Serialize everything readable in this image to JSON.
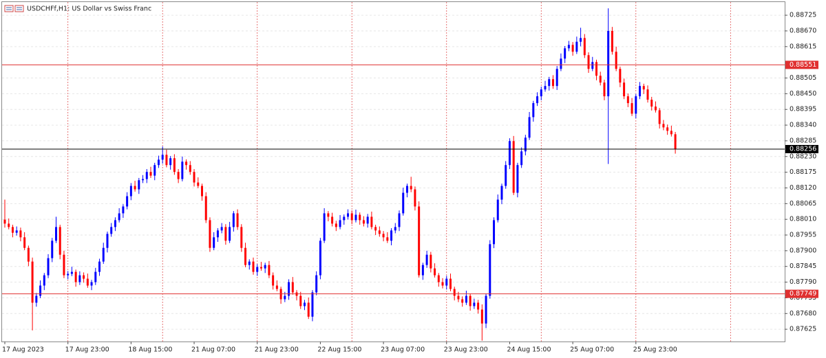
{
  "chart_data": {
    "type": "candlestick",
    "title": "USDCHFf,H1:  US Dollar vs Swiss Franc",
    "up_color": "#0000ff",
    "down_color": "#ff0000",
    "grid": true,
    "ylim": [
      0.87582,
      0.88771
    ],
    "yticks": [
      0.88725,
      {
        "value": 0.8867,
        "label": "0.88670"
      },
      0.88615,
      0.88505,
      {
        "value": 0.8845,
        "label": "0.88450"
      },
      0.88395,
      {
        "value": 0.8834,
        "label": "0.88340"
      },
      0.88285,
      {
        "value": 0.8823,
        "label": "0.88230"
      },
      0.88175,
      {
        "value": 0.8812,
        "label": "0.88120"
      },
      0.88065,
      {
        "value": 0.8801,
        "label": "0.88010"
      },
      0.87955,
      {
        "value": 0.879,
        "label": "0.87900"
      },
      0.87845,
      {
        "value": 0.8779,
        "label": "0.87790"
      },
      0.87735,
      {
        "value": 0.8768,
        "label": "0.87680"
      },
      0.87625
    ],
    "levels": [
      {
        "value": 0.88551,
        "color": "#e03030"
      },
      {
        "value": 0.88256,
        "color": "#000000"
      },
      {
        "value": 0.87749,
        "color": "#e03030"
      }
    ],
    "categories": [
      "17 Aug 2023",
      null,
      null,
      null,
      null,
      null,
      null,
      null,
      null,
      null,
      null,
      null,
      null,
      null,
      null,
      null,
      "17 Aug 23:00",
      null,
      null,
      null,
      null,
      null,
      null,
      null,
      null,
      null,
      null,
      null,
      null,
      null,
      null,
      null,
      "18 Aug 15:00",
      null,
      null,
      null,
      null,
      null,
      null,
      null,
      null,
      null,
      null,
      null,
      null,
      null,
      null,
      null,
      "21 Aug 07:00",
      null,
      null,
      null,
      null,
      null,
      null,
      null,
      null,
      null,
      null,
      null,
      null,
      null,
      null,
      null,
      "21 Aug 23:00",
      null,
      null,
      null,
      null,
      null,
      null,
      null,
      null,
      null,
      null,
      null,
      null,
      null,
      null,
      null,
      "22 Aug 15:00",
      null,
      null,
      null,
      null,
      null,
      null,
      null,
      null,
      null,
      null,
      null,
      null,
      null,
      null,
      null,
      "23 Aug 07:00",
      null,
      null,
      null,
      null,
      null,
      null,
      null,
      null,
      null,
      null,
      null,
      null,
      null,
      null,
      null,
      "23 Aug 23:00",
      null,
      null,
      null,
      null,
      null,
      null,
      null,
      null,
      null,
      null,
      null,
      null,
      null,
      null,
      null,
      "24 Aug 15:00",
      null,
      null,
      null,
      null,
      null,
      null,
      null,
      null,
      null,
      null,
      null,
      null,
      null,
      null,
      null,
      "25 Aug 07:00",
      null,
      null,
      null,
      null,
      null,
      null,
      null,
      null,
      null,
      null,
      null,
      null,
      null,
      null,
      null,
      "25 Aug 23:00",
      null,
      null,
      null,
      null,
      null,
      null,
      null,
      null,
      null,
      null
    ],
    "open": [
      0.88009,
      0.87995,
      0.87983,
      0.87963,
      0.87971,
      0.87947,
      0.8791,
      0.87862,
      0.87718,
      0.87742,
      0.87778,
      0.87814,
      0.87874,
      0.87935,
      0.87983,
      0.87886,
      0.87814,
      0.87819,
      0.87826,
      0.8779,
      0.87814,
      0.87802,
      0.87778,
      0.8779,
      0.87826,
      0.87862,
      0.8791,
      0.87959,
      0.87983,
      0.88007,
      0.88031,
      0.88055,
      0.88091,
      0.88127,
      0.88115,
      0.88147,
      0.88151,
      0.88176,
      0.88163,
      0.882,
      0.88219,
      0.88236,
      0.882,
      0.88224,
      0.88176,
      0.88151,
      0.88212,
      0.882,
      0.88176,
      0.88139,
      0.88127,
      0.88091,
      0.88007,
      0.8791,
      0.87947,
      0.87971,
      0.87983,
      0.87935,
      0.87983,
      0.88031,
      0.87983,
      0.8791,
      0.8785,
      0.87862,
      0.87826,
      0.87843,
      0.87838,
      0.8785,
      0.87814,
      0.87778,
      0.87766,
      0.8773,
      0.87742,
      0.8779,
      0.87754,
      0.87742,
      0.87706,
      0.87718,
      0.87669,
      0.87754,
      0.87814,
      0.87935,
      0.88031,
      0.88019,
      0.87995,
      0.87983,
      0.88007,
      0.88019,
      0.88031,
      0.88007,
      0.88026,
      0.88007,
      0.87995,
      0.88019,
      0.87983,
      0.87971,
      0.87959,
      0.87947,
      0.87935,
      0.87971,
      0.87983,
      0.88031,
      0.88103,
      0.88127,
      0.88115,
      0.88055,
      0.87814,
      0.8785,
      0.87886,
      0.87838,
      0.87814,
      0.8779,
      0.87778,
      0.87802,
      0.87766,
      0.87742,
      0.8773,
      0.87718,
      0.87742,
      0.87706,
      0.87718,
      0.87694,
      0.87645,
      0.87742,
      0.87923,
      0.88007,
      0.88079,
      0.88127,
      0.882,
      0.88284,
      0.88103,
      0.882,
      0.88248,
      0.88296,
      0.88368,
      0.88417,
      0.88441,
      0.88465,
      0.88477,
      0.88501,
      0.88477,
      0.88537,
      0.88573,
      0.88609,
      0.88621,
      0.88597,
      0.88632,
      0.88645,
      0.88585,
      0.88537,
      0.88561,
      0.88513,
      0.88489,
      0.88441,
      0.8867,
      0.88597,
      0.88537,
      0.88489,
      0.88441,
      0.88417,
      0.8838,
      0.88441,
      0.88477,
      0.88465,
      0.88429,
      0.88405,
      0.88392,
      0.88344,
      0.88332,
      0.8832,
      0.88308
    ],
    "high": [
      0.88079,
      0.88013,
      0.87991,
      0.87985,
      0.87981,
      0.87965,
      0.87918,
      0.87876,
      0.87752,
      0.87796,
      0.87822,
      0.87888,
      0.87945,
      0.88019,
      0.87991,
      0.879,
      0.87829,
      0.87844,
      0.87834,
      0.87828,
      0.87824,
      0.8782,
      0.87798,
      0.8784,
      0.87872,
      0.87928,
      0.87967,
      0.87997,
      0.88017,
      0.88049,
      0.88063,
      0.88105,
      0.88137,
      0.88145,
      0.88155,
      0.88165,
      0.88186,
      0.88194,
      0.88208,
      0.88233,
      0.88265,
      0.88254,
      0.88232,
      0.88238,
      0.88186,
      0.8823,
      0.8822,
      0.88214,
      0.88186,
      0.88157,
      0.88135,
      0.88105,
      0.88017,
      0.87965,
      0.87979,
      0.87997,
      0.87993,
      0.88001,
      0.88039,
      0.88045,
      0.87993,
      0.87928,
      0.8787,
      0.87876,
      0.87853,
      0.87861,
      0.87858,
      0.87864,
      0.87824,
      0.87796,
      0.87774,
      0.87756,
      0.878,
      0.87808,
      0.87762,
      0.87756,
      0.87728,
      0.87736,
      0.87762,
      0.87828,
      0.87945,
      0.88049,
      0.88039,
      0.88033,
      0.88005,
      0.88025,
      0.88027,
      0.88045,
      0.88041,
      0.88044,
      0.88034,
      0.88021,
      0.88029,
      0.88037,
      0.87991,
      0.87985,
      0.87969,
      0.87965,
      0.87979,
      0.87997,
      0.88041,
      0.88121,
      0.88135,
      0.88159,
      0.88125,
      0.88073,
      0.87858,
      0.879,
      0.87896,
      0.87856,
      0.87822,
      0.87804,
      0.87812,
      0.8782,
      0.87774,
      0.87756,
      0.8774,
      0.8776,
      0.8775,
      0.87732,
      0.87728,
      0.87712,
      0.8775,
      0.87937,
      0.88017,
      0.88097,
      0.88135,
      0.88214,
      0.88294,
      0.88302,
      0.88208,
      0.88262,
      0.88306,
      0.88386,
      0.88425,
      0.88455,
      0.88475,
      0.88495,
      0.88509,
      0.88515,
      0.88547,
      0.88591,
      0.88617,
      0.88635,
      0.88631,
      0.8865,
      0.88681,
      0.88659,
      0.88595,
      0.88579,
      0.88569,
      0.88527,
      0.88499,
      0.88749,
      0.88684,
      0.88615,
      0.88545,
      0.88503,
      0.88451,
      0.88435,
      0.88449,
      0.88491,
      0.88485,
      0.88479,
      0.88439,
      0.88423,
      0.884,
      0.88358,
      0.88342,
      0.88338,
      0.88316
    ],
    "low": [
      0.87981,
      0.87975,
      0.87947,
      0.87953,
      0.87933,
      0.87902,
      0.87846,
      0.87621,
      0.87704,
      0.87734,
      0.87762,
      0.87804,
      0.8786,
      0.87927,
      0.8787,
      0.87804,
      0.878,
      0.87811,
      0.87774,
      0.8778,
      0.87788,
      0.8777,
      0.87762,
      0.8778,
      0.87812,
      0.87854,
      0.87894,
      0.87949,
      0.87969,
      0.87999,
      0.88015,
      0.88045,
      0.88077,
      0.88107,
      0.88099,
      0.88137,
      0.88137,
      0.88155,
      0.88147,
      0.8819,
      0.88205,
      0.88192,
      0.88184,
      0.88166,
      0.88137,
      0.88143,
      0.88184,
      0.88166,
      0.88125,
      0.88119,
      0.88075,
      0.87997,
      0.87896,
      0.87902,
      0.87931,
      0.87961,
      0.87921,
      0.87927,
      0.87967,
      0.87973,
      0.87896,
      0.87842,
      0.87834,
      0.87816,
      0.87812,
      0.8783,
      0.87822,
      0.87804,
      0.87764,
      0.87758,
      0.87714,
      0.8772,
      0.87728,
      0.87746,
      0.87726,
      0.87696,
      0.87692,
      0.87661,
      0.87653,
      0.87744,
      0.878,
      0.87927,
      0.88003,
      0.87985,
      0.87969,
      0.87975,
      0.87991,
      0.88009,
      0.87993,
      0.87999,
      0.87991,
      0.87985,
      0.87981,
      0.87975,
      0.87955,
      0.87949,
      0.87933,
      0.87927,
      0.87919,
      0.87961,
      0.87969,
      0.88023,
      0.88087,
      0.88105,
      0.88041,
      0.87806,
      0.87798,
      0.8784,
      0.87824,
      0.87806,
      0.87774,
      0.87768,
      0.87764,
      0.87758,
      0.87726,
      0.8772,
      0.87704,
      0.8771,
      0.8769,
      0.87696,
      0.8768,
      0.87585,
      0.87629,
      0.87732,
      0.87909,
      0.87999,
      0.88063,
      0.88117,
      0.88186,
      0.88095,
      0.88087,
      0.8819,
      0.88234,
      0.88288,
      0.88352,
      0.88407,
      0.88427,
      0.88457,
      0.88461,
      0.88467,
      0.88463,
      0.88529,
      0.88557,
      0.88599,
      0.88583,
      0.88589,
      0.88616,
      0.88575,
      0.88523,
      0.88529,
      0.88497,
      0.88479,
      0.88427,
      0.88204,
      0.88587,
      0.88529,
      0.88473,
      0.88431,
      0.88403,
      0.88372,
      0.88364,
      0.88431,
      0.88449,
      0.88419,
      0.88391,
      0.88384,
      0.88328,
      0.88322,
      0.88306,
      0.883,
      0.8824
    ],
    "close": [
      0.87995,
      0.87983,
      0.87963,
      0.87971,
      0.87947,
      0.8791,
      0.87862,
      0.87718,
      0.87742,
      0.87778,
      0.87814,
      0.87874,
      0.87935,
      0.87983,
      0.87886,
      0.87814,
      0.87819,
      0.87826,
      0.8779,
      0.87814,
      0.87802,
      0.87778,
      0.8779,
      0.87826,
      0.87862,
      0.8791,
      0.87959,
      0.87983,
      0.88007,
      0.88031,
      0.88055,
      0.88091,
      0.88127,
      0.88115,
      0.88147,
      0.88151,
      0.88176,
      0.88163,
      0.882,
      0.88219,
      0.88236,
      0.882,
      0.88224,
      0.88176,
      0.88151,
      0.88212,
      0.882,
      0.88176,
      0.88139,
      0.88127,
      0.88091,
      0.88007,
      0.8791,
      0.87947,
      0.87971,
      0.87983,
      0.87935,
      0.87983,
      0.88031,
      0.87983,
      0.8791,
      0.8785,
      0.87862,
      0.87826,
      0.87843,
      0.87838,
      0.8785,
      0.87814,
      0.87778,
      0.87766,
      0.8773,
      0.87742,
      0.8779,
      0.87754,
      0.87742,
      0.87706,
      0.87718,
      0.87669,
      0.87754,
      0.87814,
      0.87935,
      0.88031,
      0.88019,
      0.87995,
      0.87983,
      0.88007,
      0.88019,
      0.88031,
      0.88007,
      0.88026,
      0.88007,
      0.87995,
      0.88019,
      0.87983,
      0.87971,
      0.87959,
      0.87947,
      0.87935,
      0.87971,
      0.87983,
      0.88031,
      0.88103,
      0.88127,
      0.88115,
      0.88055,
      0.87814,
      0.8785,
      0.87886,
      0.87838,
      0.87814,
      0.8779,
      0.87778,
      0.87802,
      0.87766,
      0.87742,
      0.8773,
      0.87718,
      0.87742,
      0.87706,
      0.87718,
      0.87694,
      0.87645,
      0.87742,
      0.87923,
      0.88007,
      0.88079,
      0.88127,
      0.882,
      0.88284,
      0.88103,
      0.882,
      0.88248,
      0.88296,
      0.88368,
      0.88417,
      0.88441,
      0.88465,
      0.88477,
      0.88501,
      0.88477,
      0.88537,
      0.88573,
      0.88609,
      0.88621,
      0.88597,
      0.88632,
      0.88645,
      0.88585,
      0.88537,
      0.88561,
      0.88513,
      0.88489,
      0.88441,
      0.8867,
      0.88597,
      0.88537,
      0.88489,
      0.88441,
      0.88417,
      0.8838,
      0.88441,
      0.88477,
      0.88465,
      0.88429,
      0.88405,
      0.88392,
      0.88344,
      0.88332,
      0.8832,
      0.88308,
      0.88256
    ]
  }
}
